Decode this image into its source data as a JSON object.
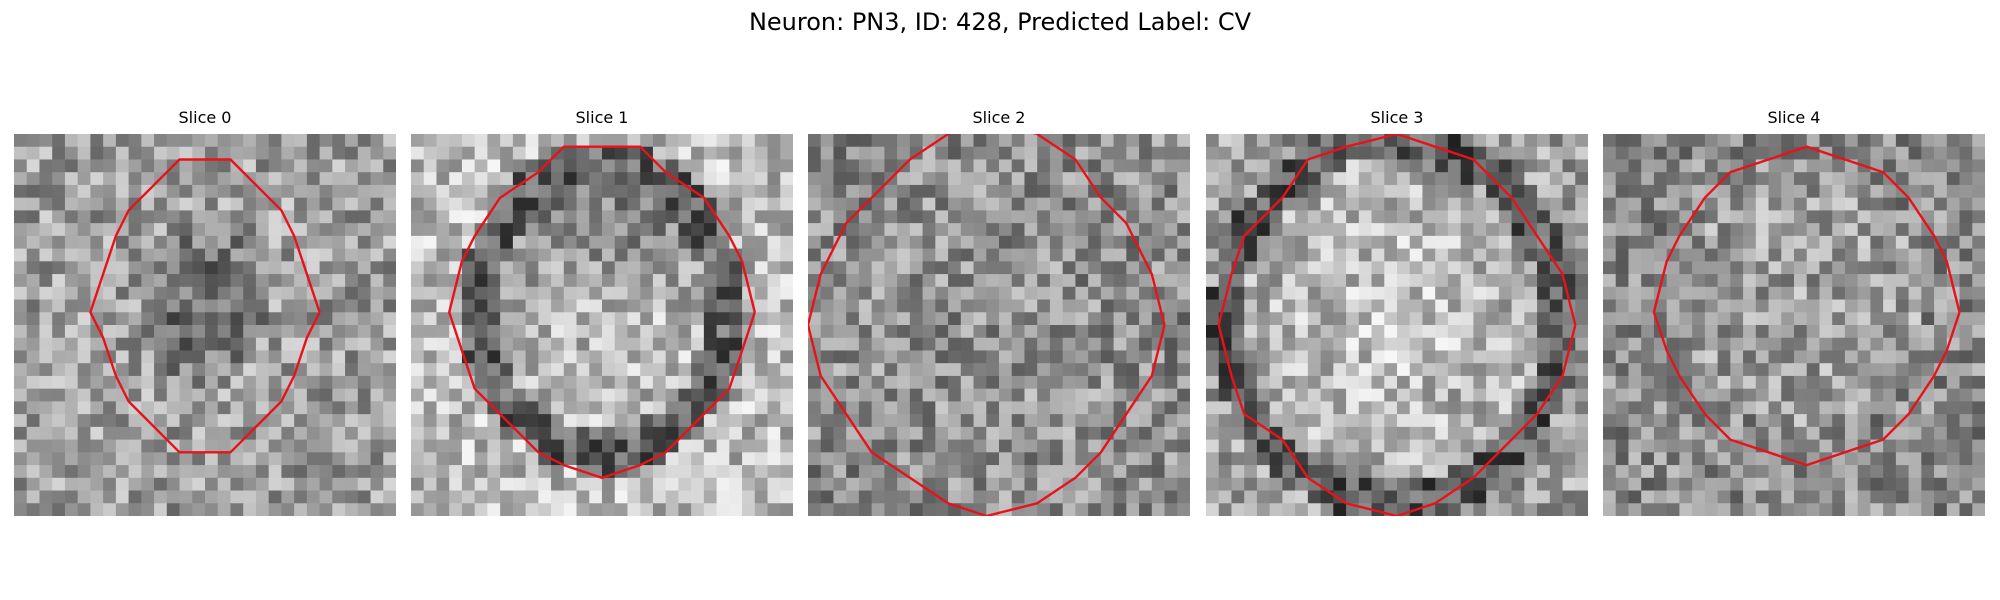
{
  "figure": {
    "title": "Neuron: PN3, ID: 428, Predicted Label: CV"
  },
  "panels": [
    {
      "title": "Slice 0",
      "seed": 11,
      "blob": "dark"
    },
    {
      "title": "Slice 1",
      "seed": 23,
      "blob": "ring-light"
    },
    {
      "title": "Slice 2",
      "seed": 37,
      "blob": "mid"
    },
    {
      "title": "Slice 3",
      "seed": 41,
      "blob": "light"
    },
    {
      "title": "Slice 4",
      "seed": 53,
      "blob": "mid-light"
    }
  ],
  "colors": {
    "contour": "#e8131a",
    "background": "#ffffff"
  }
}
